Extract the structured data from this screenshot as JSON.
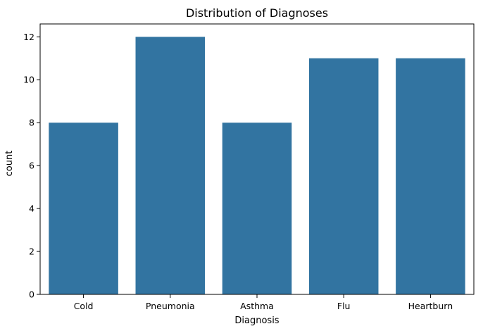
{
  "chart_data": {
    "type": "bar",
    "title": "Distribution of Diagnoses",
    "xlabel": "Diagnosis",
    "ylabel": "count",
    "categories": [
      "Cold",
      "Pneumonia",
      "Asthma",
      "Flu",
      "Heartburn"
    ],
    "values": [
      8,
      12,
      8,
      11,
      11
    ],
    "ylim": [
      0,
      12.6
    ],
    "yticks": [
      0,
      2,
      4,
      6,
      8,
      10,
      12
    ],
    "grid": false,
    "bar_color": "#3274a1"
  }
}
